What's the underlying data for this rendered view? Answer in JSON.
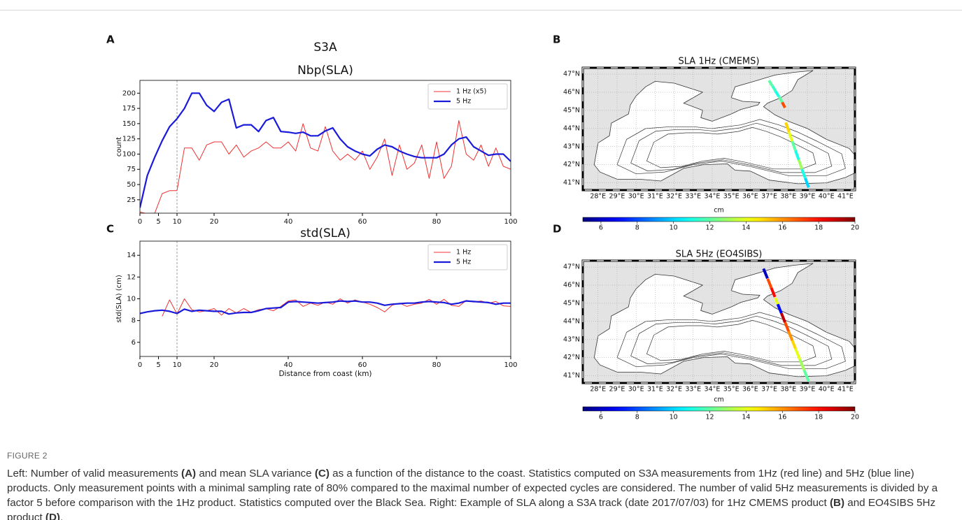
{
  "panels": [
    "A",
    "B",
    "C",
    "D"
  ],
  "chart_data": [
    {
      "type": "line",
      "suptitle": "S3A",
      "title": "Nbp(SLA)",
      "ylabel": "count",
      "x": [
        0,
        2,
        4,
        6,
        8,
        10,
        12,
        14,
        16,
        18,
        20,
        22,
        24,
        26,
        28,
        30,
        32,
        34,
        36,
        38,
        40,
        42,
        44,
        46,
        48,
        50,
        52,
        54,
        56,
        58,
        60,
        62,
        64,
        66,
        68,
        70,
        72,
        74,
        76,
        78,
        80,
        82,
        84,
        86,
        88,
        90,
        92,
        94,
        96,
        98,
        100
      ],
      "series": [
        {
          "name": "1 Hz (x5)",
          "color": "#f03030",
          "width": 1,
          "values": [
            5,
            2,
            3,
            35,
            40,
            40,
            110,
            110,
            90,
            115,
            120,
            120,
            100,
            115,
            95,
            105,
            110,
            120,
            110,
            110,
            120,
            105,
            150,
            110,
            105,
            145,
            105,
            90,
            100,
            90,
            105,
            75,
            95,
            125,
            65,
            115,
            75,
            85,
            115,
            60,
            120,
            60,
            80,
            155,
            100,
            90,
            115,
            80,
            110,
            80,
            75
          ]
        },
        {
          "name": "5 Hz",
          "color": "#1a1adb",
          "width": 2.2,
          "values": [
            12,
            65,
            95,
            122,
            145,
            158,
            175,
            200,
            200,
            180,
            170,
            185,
            190,
            143,
            148,
            148,
            137,
            155,
            160,
            137,
            136,
            134,
            136,
            130,
            130,
            138,
            143,
            125,
            112,
            105,
            100,
            97,
            108,
            115,
            112,
            105,
            100,
            96,
            94,
            94,
            94,
            100,
            115,
            125,
            128,
            112,
            105,
            98,
            100,
            100,
            88
          ]
        }
      ],
      "xlim": [
        0,
        100
      ],
      "xticks": [
        0,
        5,
        10,
        20,
        40,
        60,
        80,
        100
      ],
      "ylim": [
        3,
        221
      ],
      "yticks": [
        25,
        50,
        75,
        100,
        125,
        150,
        175,
        200
      ],
      "vline": 10,
      "legend": "upper right"
    },
    {
      "type": "line",
      "title": "std(SLA)",
      "ylabel": "std(SLA) (cm)",
      "xlabel": "Distance from coast (km)",
      "x": [
        0,
        2,
        4,
        6,
        8,
        10,
        12,
        14,
        16,
        18,
        20,
        22,
        24,
        26,
        28,
        30,
        32,
        34,
        36,
        38,
        40,
        42,
        44,
        46,
        48,
        50,
        52,
        54,
        56,
        58,
        60,
        62,
        64,
        66,
        68,
        70,
        72,
        74,
        76,
        78,
        80,
        82,
        84,
        86,
        88,
        90,
        92,
        94,
        96,
        98,
        100
      ],
      "series": [
        {
          "name": "1 Hz",
          "color": "#f03030",
          "width": 1,
          "values": [
            null,
            null,
            null,
            8.4,
            9.9,
            8.6,
            10.0,
            9.0,
            8.8,
            8.9,
            9.1,
            8.5,
            9.1,
            8.7,
            9.1,
            8.75,
            9.0,
            9.1,
            8.9,
            9.3,
            9.8,
            9.9,
            9.3,
            9.6,
            9.4,
            9.7,
            9.5,
            10.0,
            9.6,
            9.9,
            9.7,
            9.5,
            9.2,
            8.8,
            9.4,
            9.6,
            9.3,
            9.5,
            9.6,
            9.95,
            9.5,
            9.95,
            9.4,
            9.3,
            9.85,
            9.7,
            9.8,
            9.6,
            9.75,
            9.35,
            9.3
          ]
        },
        {
          "name": "5 Hz",
          "color": "#1a1adb",
          "width": 2.2,
          "values": [
            8.65,
            8.8,
            8.9,
            8.95,
            8.85,
            8.65,
            9.05,
            8.85,
            8.95,
            8.9,
            8.85,
            8.85,
            8.6,
            8.7,
            8.75,
            8.75,
            8.9,
            9.1,
            9.15,
            9.2,
            9.7,
            9.75,
            9.7,
            9.65,
            9.6,
            9.65,
            9.7,
            9.8,
            9.75,
            9.8,
            9.7,
            9.7,
            9.6,
            9.4,
            9.5,
            9.55,
            9.6,
            9.6,
            9.7,
            9.75,
            9.7,
            9.65,
            9.5,
            9.6,
            9.8,
            9.75,
            9.7,
            9.65,
            9.5,
            9.6,
            9.6
          ]
        }
      ],
      "xlim": [
        0,
        100
      ],
      "xticks": [
        0,
        5,
        10,
        20,
        40,
        60,
        80,
        100
      ],
      "ylim": [
        4.7,
        15.3
      ],
      "yticks": [
        6,
        8,
        10,
        12,
        14
      ],
      "vline": 10,
      "legend": "upper right"
    }
  ],
  "maps": [
    {
      "title": "SLA 1Hz (CMEMS)",
      "xlim": [
        27.2,
        41.5
      ],
      "ylim": [
        40.6,
        47.35
      ],
      "xticks": [
        {
          "value": 28,
          "label": "28°E"
        },
        {
          "value": 29,
          "label": "29°E"
        },
        {
          "value": 30,
          "label": "30°E"
        },
        {
          "value": 31,
          "label": "31°E"
        },
        {
          "value": 32,
          "label": "32°E"
        },
        {
          "value": 33,
          "label": "33°E"
        },
        {
          "value": 34,
          "label": "34°E"
        },
        {
          "value": 35,
          "label": "35°E"
        },
        {
          "value": 36,
          "label": "36°E"
        },
        {
          "value": 37,
          "label": "37°E"
        },
        {
          "value": 38,
          "label": "38°E"
        },
        {
          "value": 39,
          "label": "39°E"
        },
        {
          "value": 40,
          "label": "40°E"
        },
        {
          "value": 41,
          "label": "41°E"
        }
      ],
      "yticks": [
        {
          "value": 41,
          "label": "41°N"
        },
        {
          "value": 42,
          "label": "42°N"
        },
        {
          "value": 43,
          "label": "43°N"
        },
        {
          "value": 44,
          "label": "44°N"
        },
        {
          "value": 45,
          "label": "45°N"
        },
        {
          "value": 46,
          "label": "46°N"
        },
        {
          "value": 47,
          "label": "47°N"
        }
      ],
      "track": {
        "lon": [
          37.07,
          37.25,
          37.42,
          37.6,
          37.75,
          null,
          37.95,
          38.12,
          38.29,
          38.46,
          38.63,
          38.8,
          38.98
        ],
        "lat": [
          46.5,
          46.2,
          45.9,
          45.6,
          45.3,
          null,
          44.07,
          43.55,
          43.04,
          42.53,
          42.02,
          41.51,
          41.0
        ],
        "values": [
          12,
          11.5,
          11,
          12,
          17,
          null,
          15,
          14,
          12,
          11,
          13,
          11,
          10
        ]
      },
      "colorbar": {
        "label": "cm",
        "colormap": "jet",
        "lim": [
          5,
          20
        ],
        "ticks": [
          6,
          8,
          10,
          12,
          14,
          16,
          18,
          20
        ]
      }
    },
    {
      "title": "SLA 5Hz (EO4SIBS)",
      "xlim": [
        27.2,
        41.5
      ],
      "ylim": [
        40.6,
        47.35
      ],
      "xticks": [
        {
          "value": 28,
          "label": "28°E"
        },
        {
          "value": 29,
          "label": "29°E"
        },
        {
          "value": 30,
          "label": "30°E"
        },
        {
          "value": 31,
          "label": "31°E"
        },
        {
          "value": 32,
          "label": "32°E"
        },
        {
          "value": 33,
          "label": "33°E"
        },
        {
          "value": 34,
          "label": "34°E"
        },
        {
          "value": 35,
          "label": "35°E"
        },
        {
          "value": 36,
          "label": "36°E"
        },
        {
          "value": 37,
          "label": "37°E"
        },
        {
          "value": 38,
          "label": "38°E"
        },
        {
          "value": 39,
          "label": "39°E"
        },
        {
          "value": 40,
          "label": "40°E"
        },
        {
          "value": 41,
          "label": "41°E"
        }
      ],
      "yticks": [
        {
          "value": 41,
          "label": "41°N"
        },
        {
          "value": 42,
          "label": "42°N"
        },
        {
          "value": 43,
          "label": "43°N"
        },
        {
          "value": 44,
          "label": "44°N"
        },
        {
          "value": 45,
          "label": "45°N"
        },
        {
          "value": 46,
          "label": "46°N"
        },
        {
          "value": 47,
          "label": "47°N"
        }
      ],
      "track": {
        "lon": [
          36.8,
          37.01,
          37.2,
          37.39,
          37.54,
          37.73,
          37.92,
          38.11,
          38.3,
          38.49,
          38.72,
          38.95
        ],
        "lat": [
          46.64,
          46.1,
          45.6,
          45.1,
          44.7,
          44.2,
          43.7,
          43.2,
          42.7,
          42.2,
          41.6,
          41.0
        ],
        "values": [
          6,
          17,
          18,
          14,
          7,
          19,
          17,
          16,
          15,
          14,
          13,
          12
        ]
      },
      "colorbar": {
        "label": "cm",
        "colormap": "jet",
        "lim": [
          5,
          20
        ],
        "ticks": [
          6,
          8,
          10,
          12,
          14,
          16,
          18,
          20
        ]
      }
    }
  ],
  "caption": {
    "label": "FIGURE 2",
    "segments": [
      "Left: Number of valid measurements ",
      "(A)",
      " and mean SLA variance ",
      "(C)",
      " as a function of the distance to the coast. Statistics computed on S3A measurements from 1Hz (red line) and 5Hz (blue line) products. Only measurement points with a minimal sampling rate of 80% compared to the maximal number of expected cycles are considered. The number of valid 5Hz measurements is divided by a factor 5 before comparison with the 1Hz product. Statistics computed over the Black Sea. Right: Example of SLA along a S3A track (date 2017/07/03) for 1Hz CMEMS product ",
      "(B)",
      " and EO4SIBS 5Hz product ",
      "(D)",
      "."
    ]
  }
}
